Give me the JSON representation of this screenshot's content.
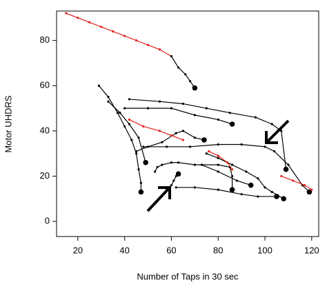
{
  "chart_data": {
    "type": "line",
    "xlabel": "Number of Taps in 30 sec",
    "ylabel": "Motor UHDRS",
    "xlim": [
      10.9,
      123
    ],
    "ylim": [
      -6.7,
      93
    ],
    "xticks": [
      20,
      40,
      60,
      80,
      100,
      120
    ],
    "yticks": [
      0,
      20,
      40,
      60,
      80
    ],
    "series": [
      {
        "color": "#e0201a",
        "x": [
          15,
          20,
          25,
          30,
          35,
          40,
          45,
          50,
          55,
          60
        ],
        "values": [
          92,
          90,
          88,
          86,
          84,
          82,
          80,
          78,
          76,
          73
        ]
      },
      {
        "color": "#000000",
        "x": [
          60,
          63,
          66,
          68,
          70
        ],
        "values": [
          73,
          68,
          65,
          62,
          59
        ]
      },
      {
        "color": "#000000",
        "x": [
          29,
          33,
          37,
          40,
          43,
          45,
          46,
          47,
          47
        ],
        "values": [
          60,
          55,
          48,
          42,
          36,
          30,
          23,
          17,
          13
        ]
      },
      {
        "color": "#000000",
        "x": [
          33,
          38,
          42,
          46,
          49
        ],
        "values": [
          53,
          48,
          43,
          37,
          26
        ]
      },
      {
        "color": "#000000",
        "x": [
          42,
          55,
          65,
          75,
          85,
          96,
          103,
          107,
          109
        ],
        "values": [
          54,
          53,
          52,
          50,
          48,
          46,
          43,
          40,
          23
        ]
      },
      {
        "color": "#000000",
        "x": [
          40,
          50,
          60,
          70,
          80,
          86
        ],
        "values": [
          50,
          50,
          50,
          47,
          45,
          43
        ]
      },
      {
        "color": "#000000",
        "x": [
          48,
          58,
          68,
          80,
          90,
          100,
          104,
          110,
          116,
          119
        ],
        "values": [
          33,
          33,
          33,
          34,
          34,
          33,
          31,
          25,
          16,
          13
        ]
      },
      {
        "color": "#000000",
        "x": [
          53,
          54,
          56,
          60,
          63,
          70,
          80,
          85,
          86,
          86
        ],
        "values": [
          22,
          24,
          25,
          26,
          26,
          25,
          25,
          24,
          20,
          14
        ]
      },
      {
        "color": "#000000",
        "x": [
          58,
          60,
          61,
          62,
          63
        ],
        "values": [
          14,
          16,
          18,
          20,
          21
        ]
      },
      {
        "color": "#000000",
        "x": [
          62,
          70,
          80,
          90,
          97,
          105
        ],
        "values": [
          15,
          15,
          14,
          12,
          11,
          11
        ]
      },
      {
        "color": "#000000",
        "x": [
          75,
          80,
          86,
          92,
          97,
          100,
          103,
          108
        ],
        "values": [
          30,
          28,
          25,
          22,
          19,
          15,
          13,
          10
        ]
      },
      {
        "color": "#000000",
        "x": [
          73,
          80,
          88,
          94
        ],
        "values": [
          25,
          22,
          18,
          16
        ]
      },
      {
        "color": "#000000",
        "x": [
          45,
          50,
          56,
          62,
          65,
          70,
          74
        ],
        "values": [
          31,
          33,
          35,
          39,
          40,
          37,
          36
        ]
      },
      {
        "color": "#e0201a",
        "x": [
          42,
          48,
          55,
          60,
          65
        ],
        "values": [
          45,
          42,
          40,
          38,
          36
        ]
      },
      {
        "color": "#e0201a",
        "x": [
          76,
          80,
          84,
          86
        ],
        "values": [
          31,
          29,
          26,
          23
        ]
      },
      {
        "color": "#e0201a",
        "x": [
          107,
          112,
          117,
          120
        ],
        "values": [
          20,
          18,
          16,
          14
        ]
      }
    ]
  }
}
